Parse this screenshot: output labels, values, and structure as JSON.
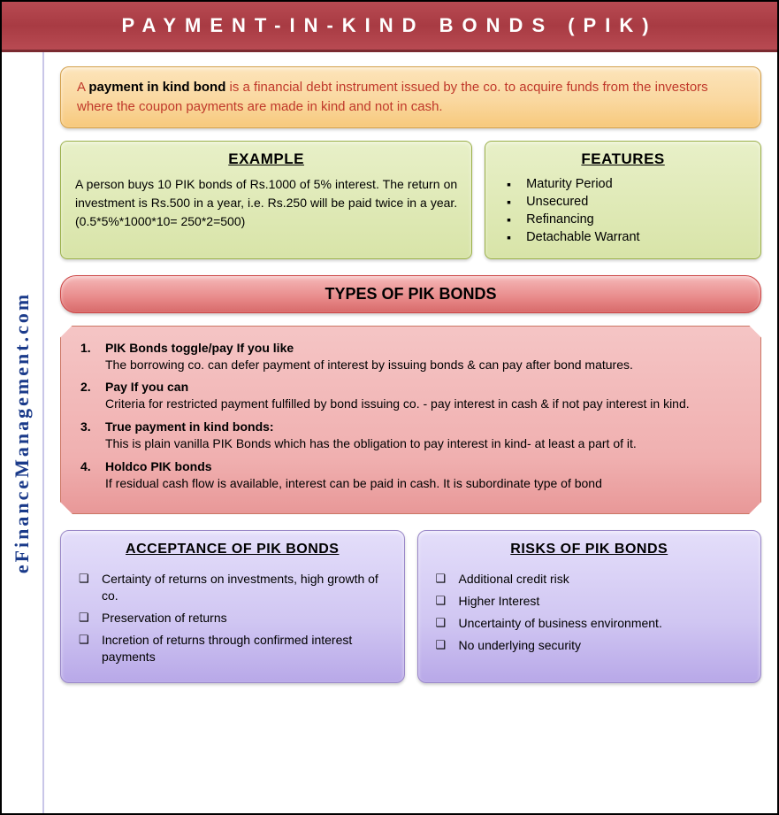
{
  "header": {
    "title": "PAYMENT-IN-KIND BONDS (PIK)"
  },
  "sidebar": {
    "text": "eFinanceManagement.com"
  },
  "intro": {
    "bold": "payment in kind bond",
    "before": "A ",
    "after": " is a financial debt instrument issued by the co. to acquire funds from the investors where the coupon payments are made in kind and not in cash."
  },
  "example": {
    "heading": "EXAMPLE",
    "text": "A person buys 10 PIK bonds of Rs.1000 of 5% interest. The return on investment is Rs.500 in a year, i.e. Rs.250 will be paid twice in a year. (0.5*5%*1000*10= 250*2=500)"
  },
  "features": {
    "heading": "FEATURES",
    "items": [
      "Maturity Period",
      "Unsecured",
      "Refinancing",
      "Detachable Warrant"
    ]
  },
  "types": {
    "heading": "TYPES OF PIK BONDS",
    "items": [
      {
        "title": "PIK Bonds toggle/pay If you like",
        "desc": "The borrowing co. can defer payment of interest by issuing bonds & can pay after bond matures."
      },
      {
        "title": "Pay If you can",
        "desc": "Criteria for restricted payment fulfilled by bond issuing co. - pay interest in cash & if not pay interest in kind."
      },
      {
        "title": "True payment in kind bonds:",
        "desc": "This is plain vanilla PIK Bonds which has the obligation to pay interest in kind- at least a part of it."
      },
      {
        "title": "Holdco PIK bonds",
        "desc": "If residual cash flow is available, interest can be paid in cash. It is subordinate type of bond"
      }
    ]
  },
  "acceptance": {
    "heading": "ACCEPTANCE OF PIK BONDS",
    "items": [
      "Certainty of returns on investments, high growth of co.",
      "Preservation of returns",
      "Incretion of returns through confirmed interest payments"
    ]
  },
  "risks": {
    "heading": "RISKS OF PIK BONDS",
    "items": [
      "Additional credit risk",
      "Higher Interest",
      "Uncertainty of business environment.",
      "No underlying security"
    ]
  },
  "colors": {
    "header_bg": "#a83b43",
    "intro_bg": "#fad8a0",
    "green_card_bg": "#d8e4a8",
    "types_header_bg": "#e88a8a",
    "types_body_bg": "#f0b0b0",
    "purple_card_bg": "#d0c6f2",
    "sidebar_text": "#1a3a8a",
    "intro_text": "#c0392b"
  }
}
